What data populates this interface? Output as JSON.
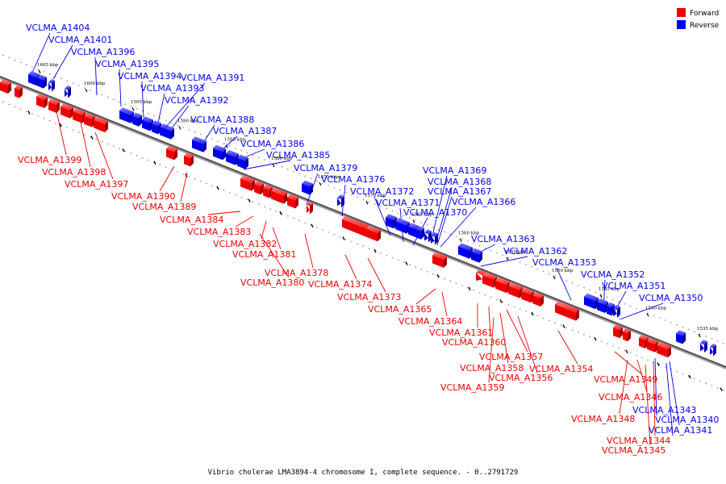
{
  "legend": {
    "forward": {
      "label": "Forward",
      "color": "#ee0000"
    },
    "reverse": {
      "label": "Reverse",
      "color": "#0000ee"
    }
  },
  "caption": "Vibrio cholerae LMA3894-4 chromosome I, complete sequence. - 0..2791729",
  "ticks": [
    "1605 kbp",
    "1600 kbp",
    "1595 kbp",
    "1590 kbp",
    "1585 kbp",
    "1580 kbp",
    "1575 kbp",
    "1570 kbp",
    "1565 kbp",
    "1560 kbp",
    "1555 kbp",
    "1550 kbp",
    "1545 kbp",
    "1540 kbp",
    "1535 kbp"
  ],
  "reverse_labels": [
    "VCLMA_A1404",
    "VCLMA_A1401",
    "VCLMA_A1396",
    "VCLMA_A1395",
    "VCLMA_A1394",
    "VCLMA_A1393",
    "VCLMA_A1391",
    "VCLMA_A1392",
    "VCLMA_A1388",
    "VCLMA_A1387",
    "VCLMA_A1386",
    "VCLMA_A1385",
    "VCLMA_A1379",
    "VCLMA_A1376",
    "VCLMA_A1372",
    "VCLMA_A1369",
    "VCLMA_A1368",
    "VCLMA_A1367",
    "VCLMA_A1371",
    "VCLMA_A1366",
    "VCLMA_A1370",
    "VCLMA_A1363",
    "VCLMA_A1362",
    "VCLMA_A1353",
    "VCLMA_A1352",
    "VCLMA_A1351",
    "VCLMA_A1350",
    "VCLMA_A1343",
    "VCLMA_A1340",
    "VCLMA_A1341"
  ],
  "forward_labels": [
    "VCLMA_A1399",
    "VCLMA_A1398",
    "VCLMA_A1397",
    "VCLMA_A1390",
    "VCLMA_A1389",
    "VCLMA_A1384",
    "VCLMA_A1383",
    "VCLMA_A1382",
    "VCLMA_A1381",
    "VCLMA_A1378",
    "VCLMA_A1380",
    "VCLMA_A1374",
    "VCLMA_A1373",
    "VCLMA_A1365",
    "VCLMA_A1364",
    "VCLMA_A1361",
    "VCLMA_A1360",
    "VCLMA_A1357",
    "VCLMA_A1358",
    "VCLMA_A1356",
    "VCLMA_A1354",
    "VCLMA_A1359",
    "VCLMA_A1349",
    "VCLMA_A1346",
    "VCLMA_A1348",
    "VCLMA_A1344",
    "VCLMA_A1345"
  ]
}
